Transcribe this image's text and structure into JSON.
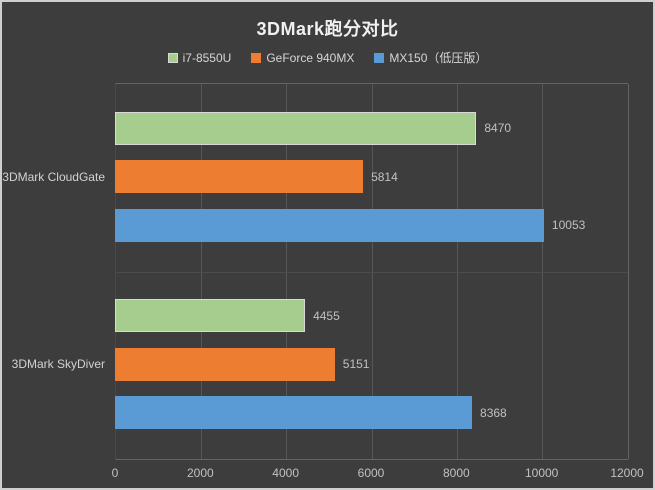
{
  "title": "3DMark跑分对比",
  "legend": {
    "items": [
      {
        "label": "i7-8550U"
      },
      {
        "label": "GeForce 940MX"
      },
      {
        "label": "MX150（低压版）"
      }
    ]
  },
  "chart_data": {
    "type": "bar",
    "orientation": "horizontal",
    "title": "3DMark跑分对比",
    "categories": [
      "3DMark CloudGate",
      "3DMark SkyDiver"
    ],
    "series": [
      {
        "name": "i7-8550U",
        "color": "#a6cc8e",
        "border": "#d9d9d9",
        "values": [
          8470,
          4455
        ]
      },
      {
        "name": "GeForce 940MX",
        "color": "#ed7d31",
        "border": null,
        "values": [
          5814,
          5151
        ]
      },
      {
        "name": "MX150（低压版）",
        "color": "#5b9bd5",
        "border": null,
        "values": [
          10053,
          8368
        ]
      }
    ],
    "xlim": [
      0,
      12000
    ],
    "xticks": [
      0,
      2000,
      4000,
      6000,
      8000,
      10000,
      12000
    ],
    "grid": true,
    "legend_position": "top",
    "value_labels": true
  },
  "colors": {
    "background": "#3d3d3d",
    "outer_border": "#cfcfcf",
    "title_text": "#f0f0f0",
    "legend_text": "#d6d6d6",
    "category_text": "#d2d2d2",
    "value_text": "#c1c1c1",
    "tick_text": "#c1c1c1",
    "gridline": "#55575a",
    "plot_border": "#636567",
    "category_divider": "#4a4c4e"
  }
}
